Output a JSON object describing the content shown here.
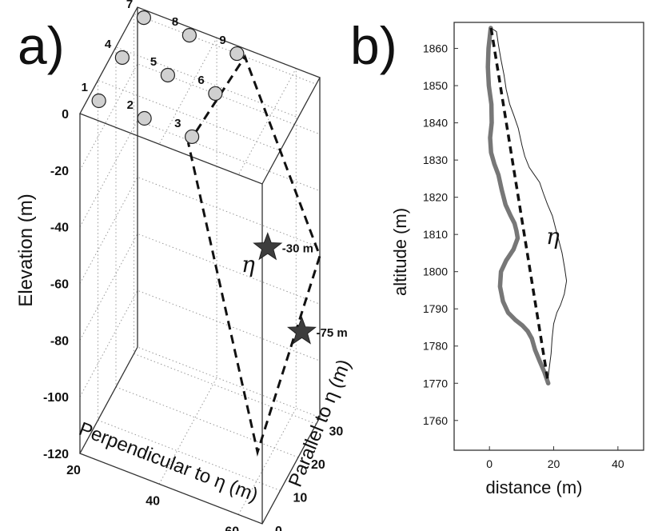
{
  "chart_data": [
    {
      "type": "scatter3d",
      "panel_label": "a)",
      "xlabel": "Perpendicular to η (m)",
      "ylabel": "Parallel to η (m)",
      "zlabel": "Elevation (m)",
      "x_ticks": [
        "20",
        "40",
        "60"
      ],
      "y_ticks": [
        "0",
        "10",
        "20",
        "30"
      ],
      "z_ticks": [
        "0",
        "-20",
        "-40",
        "-60",
        "-80",
        "-100",
        "-120"
      ],
      "xlim": [
        20,
        66
      ],
      "ylim": [
        0,
        32
      ],
      "zlim": [
        -120,
        0
      ],
      "grid": true,
      "sensors": [
        {
          "label": "1",
          "x": 22.5,
          "y": 5,
          "z": 0
        },
        {
          "label": "2",
          "x": 34,
          "y": 5,
          "z": 0
        },
        {
          "label": "3",
          "x": 46,
          "y": 5,
          "z": 0
        },
        {
          "label": "4",
          "x": 22.5,
          "y": 18,
          "z": 0
        },
        {
          "label": "5",
          "x": 34,
          "y": 18,
          "z": 0
        },
        {
          "label": "6",
          "x": 46,
          "y": 18,
          "z": 0
        },
        {
          "label": "7",
          "x": 22.5,
          "y": 30,
          "z": 0
        },
        {
          "label": "8",
          "x": 34,
          "y": 30,
          "z": 0
        },
        {
          "label": "9",
          "x": 46,
          "y": 30,
          "z": 0
        }
      ],
      "stars": [
        {
          "label": "-30 m",
          "x": 66,
          "y": 3,
          "z": -26
        },
        {
          "label": "-75 m",
          "x": 66,
          "y": 22,
          "z": -78
        }
      ],
      "annotation": "η"
    },
    {
      "type": "line",
      "panel_label": "b)",
      "xlabel": "distance (m)",
      "ylabel": "altitude (m)",
      "x_ticks": [
        "0",
        "20",
        "40"
      ],
      "y_ticks": [
        "1760",
        "1770",
        "1780",
        "1790",
        "1800",
        "1810",
        "1820",
        "1830",
        "1840",
        "1850",
        "1860"
      ],
      "xlim": [
        -11,
        48
      ],
      "ylim": [
        1752,
        1867
      ],
      "annotation": "η",
      "series": [
        {
          "style": "thin-outline",
          "x": [
            0.5,
            2.2,
            2.8,
            3.6,
            4.5,
            5.2,
            6.3,
            7.6,
            9.0,
            10.1,
            11.0,
            12.4,
            14.0,
            15.6,
            16.8,
            18.1,
            19.6,
            20.8,
            21.7,
            22.6,
            23.4,
            24.0,
            23.3,
            22.1,
            21.0,
            20.0,
            19.5,
            19.2,
            18.6,
            18.1
          ],
          "y": [
            1865.5,
            1864.5,
            1861,
            1857,
            1853,
            1849,
            1845,
            1842,
            1838.5,
            1834,
            1831,
            1828,
            1826,
            1824,
            1821,
            1818,
            1815,
            1811,
            1808,
            1805,
            1801,
            1797.5,
            1794,
            1791,
            1789,
            1786,
            1782,
            1778,
            1774,
            1770
          ]
        },
        {
          "style": "thick-gray",
          "x": [
            0.4,
            -0.3,
            -0.5,
            -0.2,
            0.6,
            0.7,
            0.2,
            0.5,
            1.5,
            2.8,
            3.8,
            5.0,
            6.6,
            7.8,
            8.4,
            8.8,
            7.5,
            5.2,
            3.6,
            3.3,
            4.2,
            5.8,
            8.1,
            10.3,
            11.9,
            13.2,
            14.2,
            15.6,
            17.1,
            18.3
          ],
          "y": [
            1865.5,
            1860,
            1855,
            1850,
            1845,
            1840,
            1836,
            1832,
            1829,
            1826,
            1822,
            1818,
            1815,
            1813,
            1811,
            1809,
            1806,
            1803,
            1800,
            1796,
            1792,
            1789,
            1787,
            1785.5,
            1784,
            1782,
            1779,
            1776,
            1773,
            1770
          ]
        },
        {
          "style": "dashed-line",
          "x": [
            0.5,
            18.3
          ],
          "y": [
            1865.5,
            1770
          ]
        }
      ]
    }
  ]
}
